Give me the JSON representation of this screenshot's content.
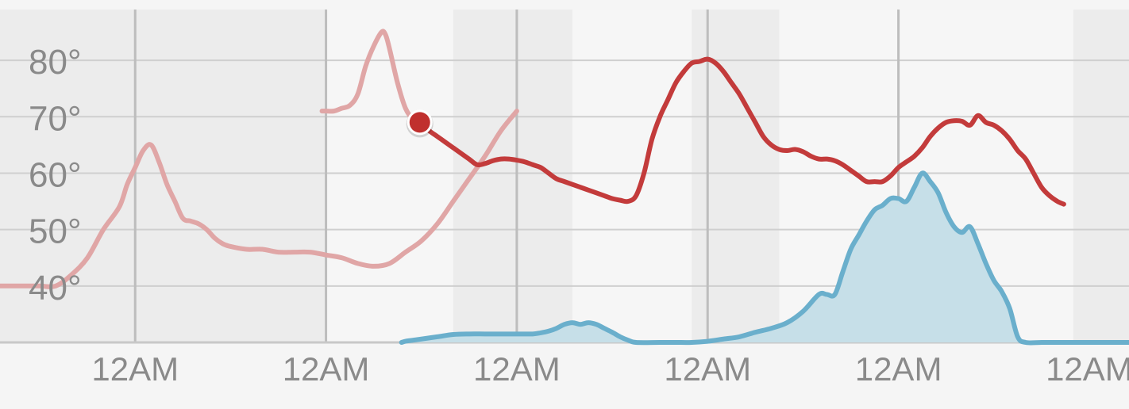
{
  "chart_data": {
    "type": "line",
    "title": "",
    "xlabel": "",
    "ylabel": "",
    "grid": true,
    "colors": {
      "temperature_past": "#e0a6a6",
      "temperature_future": "#c33b3b",
      "precipitation_fill": "#c6dfe8",
      "precipitation_line": "#6aafcc",
      "night_band": "#ececec",
      "gridline": "#cfcfcf",
      "day_divider": "#bdbdbd",
      "axis_text": "#8a8a8a",
      "current_marker": "#c0302e"
    },
    "y_axis": {
      "ylim": [
        30,
        89
      ],
      "ticks": [
        40,
        50,
        60,
        70,
        80
      ],
      "tick_labels": [
        "40°",
        "50°",
        "60°",
        "70°",
        "80°"
      ]
    },
    "x_axis": {
      "range_hours": [
        -41,
        101
      ],
      "ticks": [
        -24,
        0,
        24,
        48,
        72,
        96
      ],
      "tick_labels": [
        "12AM",
        "12AM",
        "12AM",
        "12AM",
        "12AM",
        "12AM"
      ],
      "day_divider_hours": [
        -24,
        0,
        24,
        48,
        72
      ]
    },
    "night_bands": [
      [
        -41,
        0
      ],
      [
        16,
        31
      ],
      [
        46,
        57
      ],
      [
        94,
        101
      ]
    ],
    "current_time_hour": 11.8,
    "current_temperature": 69,
    "series": [
      {
        "kind": "temperature",
        "segment": "past",
        "points": [
          [
            -41,
            40
          ],
          [
            -38,
            40
          ],
          [
            -36,
            40
          ],
          [
            -34,
            40
          ],
          [
            -32,
            42
          ],
          [
            -30,
            45
          ],
          [
            -28,
            50
          ],
          [
            -26,
            54
          ],
          [
            -25,
            58
          ],
          [
            -24,
            61
          ],
          [
            -23,
            64
          ],
          [
            -22,
            65
          ],
          [
            -21,
            62
          ],
          [
            -20,
            58
          ],
          [
            -19,
            55
          ],
          [
            -18,
            52
          ],
          [
            -17,
            51.5
          ],
          [
            -16,
            51
          ],
          [
            -15,
            50
          ],
          [
            -14,
            48.5
          ],
          [
            -13,
            47.5
          ],
          [
            -12,
            47
          ],
          [
            -10,
            46.5
          ],
          [
            -8,
            46.5
          ],
          [
            -6,
            46
          ],
          [
            -4,
            46
          ],
          [
            -2,
            46
          ],
          [
            0,
            45.5
          ],
          [
            2,
            45
          ],
          [
            4,
            44
          ],
          [
            6,
            43.5
          ],
          [
            8,
            44
          ],
          [
            10,
            46
          ],
          [
            12,
            48
          ],
          [
            14,
            51
          ],
          [
            16,
            55
          ],
          [
            18,
            59
          ],
          [
            20,
            63
          ],
          [
            22,
            67.5
          ],
          [
            24,
            71
          ]
        ]
      },
      {
        "kind": "temperature",
        "segment": "past",
        "points": [
          [
            -0.5,
            71
          ],
          [
            0,
            71
          ],
          [
            1,
            71
          ],
          [
            2,
            71.5
          ],
          [
            3,
            72
          ],
          [
            4,
            74
          ],
          [
            5,
            79
          ],
          [
            6,
            82.5
          ],
          [
            7,
            85
          ],
          [
            7.5,
            84.5
          ],
          [
            8,
            82
          ],
          [
            9,
            76
          ],
          [
            10,
            71.5
          ],
          [
            11,
            69.5
          ],
          [
            11.8,
            69
          ]
        ]
      },
      {
        "kind": "temperature",
        "segment": "forecast",
        "points": [
          [
            11.8,
            69
          ],
          [
            13,
            67.5
          ],
          [
            14,
            66.5
          ],
          [
            15,
            65.5
          ],
          [
            16,
            64.5
          ],
          [
            17,
            63.5
          ],
          [
            18,
            62.5
          ],
          [
            19,
            61.5
          ],
          [
            20,
            61.7
          ],
          [
            21,
            62.2
          ],
          [
            22,
            62.5
          ],
          [
            23,
            62.5
          ],
          [
            24,
            62.3
          ],
          [
            25,
            62
          ],
          [
            26,
            61.5
          ],
          [
            27,
            61
          ],
          [
            28,
            60
          ],
          [
            29,
            59
          ],
          [
            30,
            58.5
          ],
          [
            31,
            58
          ],
          [
            32,
            57.5
          ],
          [
            33,
            57
          ],
          [
            34,
            56.5
          ],
          [
            35,
            56
          ],
          [
            36,
            55.5
          ],
          [
            37,
            55.2
          ],
          [
            38,
            55
          ],
          [
            39,
            56
          ],
          [
            40,
            60
          ],
          [
            41,
            66
          ],
          [
            42,
            70
          ],
          [
            43,
            73
          ],
          [
            44,
            76
          ],
          [
            45,
            78
          ],
          [
            46,
            79.5
          ],
          [
            47,
            79.8
          ],
          [
            48,
            80.2
          ],
          [
            49,
            79.5
          ],
          [
            50,
            78
          ],
          [
            51,
            76
          ],
          [
            52,
            74
          ],
          [
            53,
            71.5
          ],
          [
            54,
            69
          ],
          [
            55,
            66.5
          ],
          [
            56,
            65
          ],
          [
            57,
            64.2
          ],
          [
            58,
            64
          ],
          [
            59,
            64.2
          ],
          [
            60,
            63.8
          ],
          [
            61,
            63
          ],
          [
            62,
            62.5
          ],
          [
            63,
            62.5
          ],
          [
            64,
            62.2
          ],
          [
            65,
            61.5
          ],
          [
            66,
            60.5
          ],
          [
            67,
            59.5
          ],
          [
            68,
            58.5
          ],
          [
            69,
            58.5
          ],
          [
            70,
            58.5
          ],
          [
            71,
            59.5
          ],
          [
            72,
            61
          ],
          [
            73,
            62
          ],
          [
            74,
            63
          ],
          [
            75,
            64.5
          ],
          [
            76,
            66.5
          ],
          [
            77,
            68
          ],
          [
            78,
            69
          ],
          [
            79,
            69.3
          ],
          [
            80,
            69.2
          ],
          [
            81,
            68.5
          ],
          [
            82,
            70.2
          ],
          [
            83,
            69
          ],
          [
            84,
            68.5
          ],
          [
            85,
            67.5
          ],
          [
            86,
            66
          ],
          [
            87,
            64
          ],
          [
            88,
            62.5
          ],
          [
            89,
            60
          ],
          [
            90,
            57.5
          ],
          [
            91,
            56
          ],
          [
            92,
            55
          ],
          [
            92.8,
            54.5
          ]
        ]
      },
      {
        "kind": "precipitation",
        "points": [
          [
            9.5,
            30
          ],
          [
            10,
            30.2
          ],
          [
            11,
            30.4
          ],
          [
            12,
            30.6
          ],
          [
            14,
            31
          ],
          [
            16,
            31.4
          ],
          [
            18,
            31.5
          ],
          [
            20,
            31.5
          ],
          [
            22,
            31.5
          ],
          [
            24,
            31.5
          ],
          [
            26,
            31.5
          ],
          [
            27,
            31.7
          ],
          [
            28,
            32
          ],
          [
            29,
            32.5
          ],
          [
            30,
            33.2
          ],
          [
            31,
            33.5
          ],
          [
            32,
            33.2
          ],
          [
            33,
            33.5
          ],
          [
            34,
            33.2
          ],
          [
            35,
            32.5
          ],
          [
            36,
            31.8
          ],
          [
            37,
            31
          ],
          [
            38,
            30.4
          ],
          [
            39,
            30
          ],
          [
            42,
            30
          ],
          [
            44,
            30
          ],
          [
            46,
            30
          ],
          [
            48,
            30.2
          ],
          [
            50,
            30.6
          ],
          [
            52,
            31
          ],
          [
            54,
            31.8
          ],
          [
            56,
            32.5
          ],
          [
            58,
            33.5
          ],
          [
            60,
            35.5
          ],
          [
            62,
            38.5
          ],
          [
            63,
            38.5
          ],
          [
            64,
            38.5
          ],
          [
            65,
            42.5
          ],
          [
            66,
            46.5
          ],
          [
            67,
            49
          ],
          [
            68,
            51.5
          ],
          [
            69,
            53.5
          ],
          [
            70,
            54.3
          ],
          [
            71,
            55.5
          ],
          [
            72,
            55.5
          ],
          [
            73,
            55
          ],
          [
            74,
            57.5
          ],
          [
            75,
            60
          ],
          [
            76,
            58.5
          ],
          [
            77,
            56.5
          ],
          [
            78,
            53
          ],
          [
            79,
            50.5
          ],
          [
            80,
            49.5
          ],
          [
            81,
            50.5
          ],
          [
            82,
            47.5
          ],
          [
            83,
            44
          ],
          [
            84,
            41
          ],
          [
            85,
            39
          ],
          [
            86,
            36
          ],
          [
            87,
            31
          ],
          [
            88,
            30
          ],
          [
            90,
            30
          ],
          [
            92,
            30
          ],
          [
            94,
            30
          ],
          [
            96,
            30
          ],
          [
            98,
            30
          ],
          [
            101,
            30
          ]
        ]
      }
    ]
  }
}
